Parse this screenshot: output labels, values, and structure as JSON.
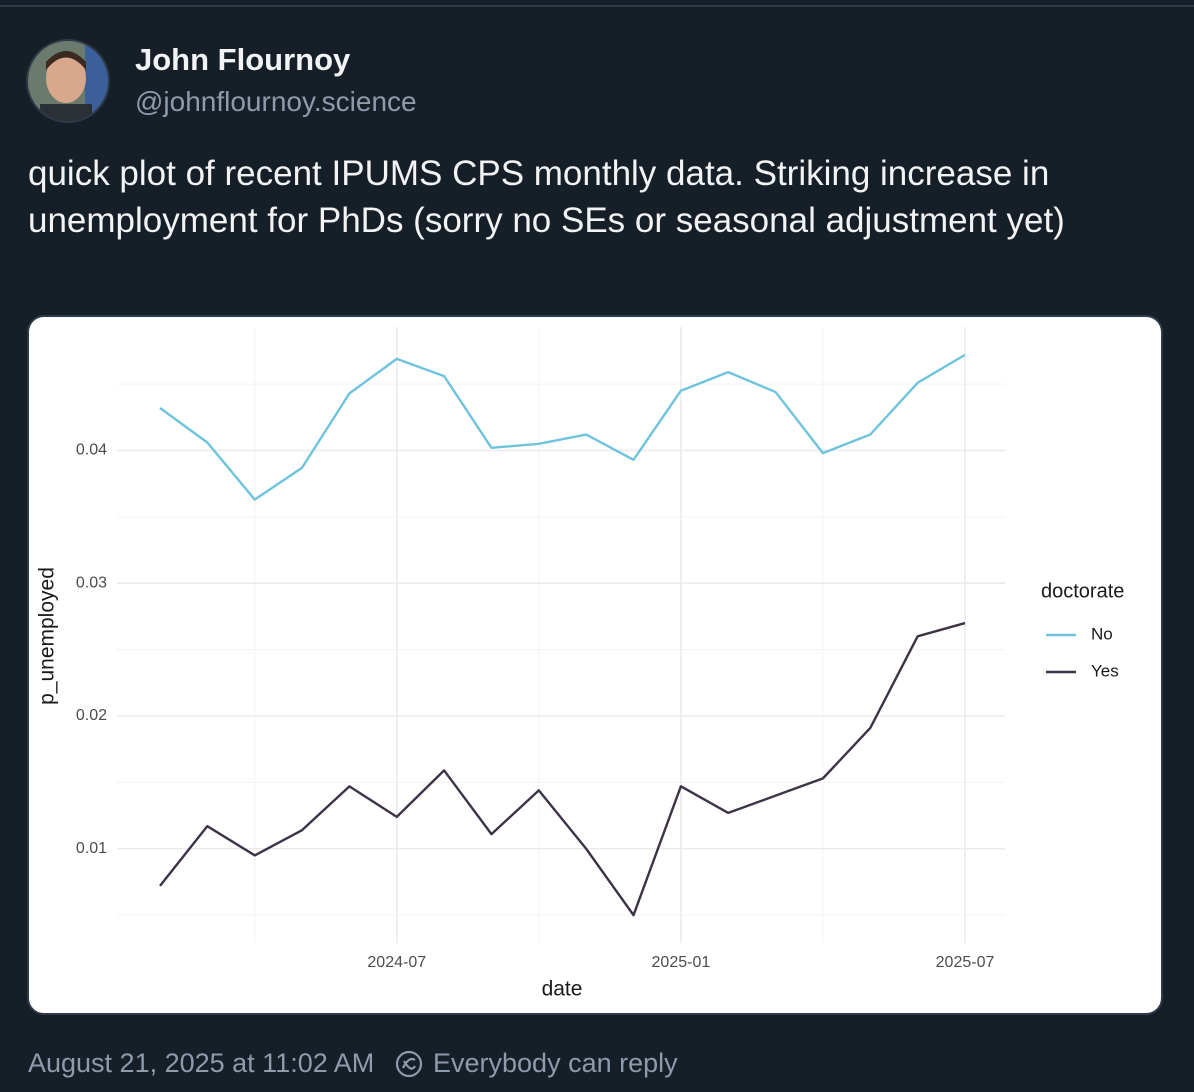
{
  "post": {
    "author_name": "John Flournoy",
    "handle": "@johnflournoy.science",
    "text": "quick plot of recent IPUMS CPS monthly data. Striking increase in unemployment for PhDs (sorry no SEs or seasonal adjustment yet)",
    "timestamp": "August 21, 2025 at 11:02 AM",
    "reply_setting": "Everybody can reply"
  },
  "chart_data": {
    "type": "line",
    "x": [
      "2024-02",
      "2024-03",
      "2024-04",
      "2024-05",
      "2024-06",
      "2024-07",
      "2024-08",
      "2024-09",
      "2024-10",
      "2024-11",
      "2024-12",
      "2025-01",
      "2025-02",
      "2025-03",
      "2025-04",
      "2025-05",
      "2025-06",
      "2025-07"
    ],
    "series": [
      {
        "name": "No",
        "color": "#6fc3dd",
        "values": [
          0.0432,
          0.0406,
          0.0363,
          0.0387,
          0.0443,
          0.0469,
          0.0456,
          0.0402,
          0.0405,
          0.0412,
          0.0393,
          0.0445,
          0.0459,
          0.0444,
          0.0398,
          0.0412,
          0.0451,
          0.0472
        ]
      },
      {
        "name": "Yes",
        "color": "#3d3347",
        "values": [
          0.0072,
          0.0117,
          0.0095,
          0.0114,
          0.0147,
          0.0124,
          0.0159,
          0.0111,
          0.0144,
          0.01,
          0.005,
          0.0147,
          0.0127,
          0.014,
          0.0153,
          0.0191,
          0.026,
          0.027
        ]
      }
    ],
    "xlabel": "date",
    "ylabel": "p_unemployed",
    "legend_title": "doctorate",
    "xlim": [
      "2024-02",
      "2025-07"
    ],
    "xticks": [
      "2024-07",
      "2025-01",
      "2025-07"
    ],
    "ylim": [
      0.0029,
      0.0493
    ],
    "yticks": [
      0.01,
      0.02,
      0.03,
      0.04
    ],
    "grid": true,
    "legend": "right"
  }
}
